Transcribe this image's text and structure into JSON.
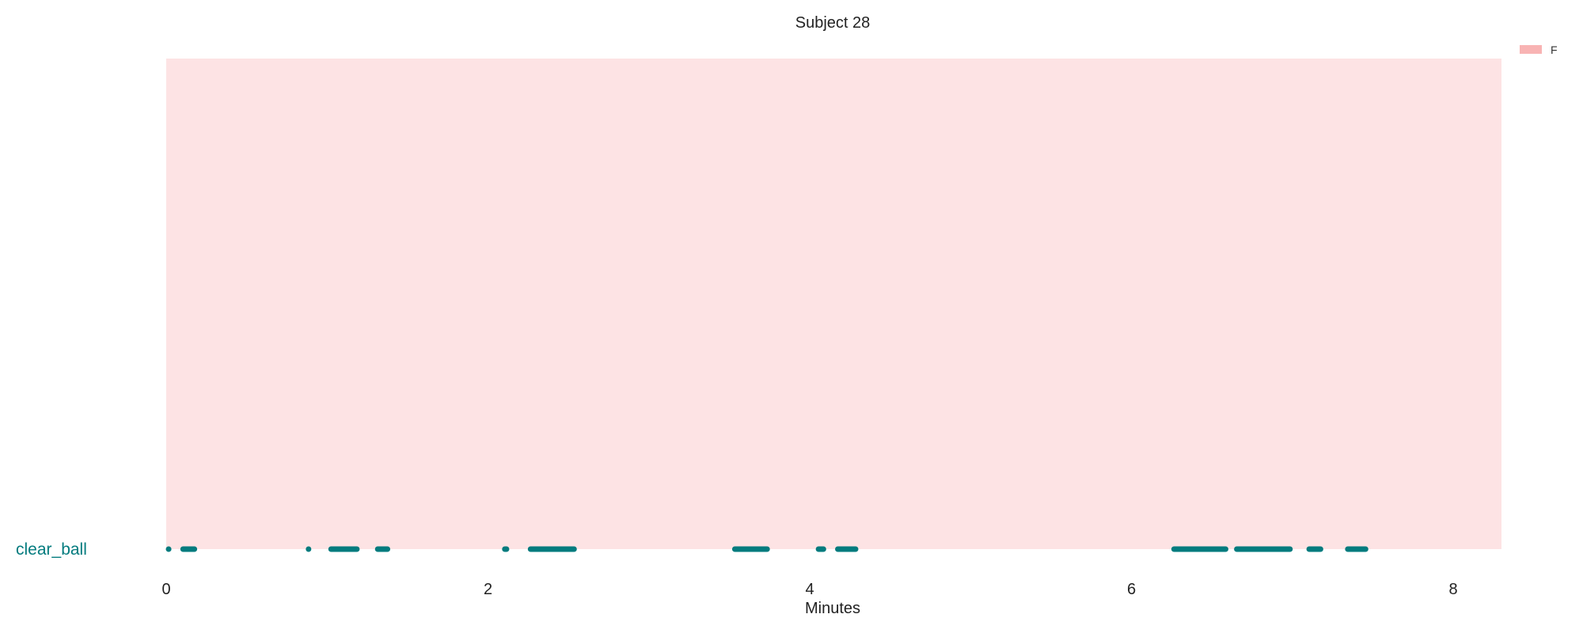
{
  "chart_data": {
    "type": "timeline",
    "title": "Subject 28",
    "xlabel": "Minutes",
    "xlim": [
      0,
      8.3
    ],
    "x_ticks": [
      0,
      2,
      4,
      6,
      8
    ],
    "x_tick_labels": [
      "0",
      "2",
      "4",
      "6",
      "8"
    ],
    "grid": false,
    "legend": {
      "placement": "top-right",
      "entries": [
        {
          "label": "F",
          "color": "#f8b3b3"
        }
      ]
    },
    "background_spans": [
      {
        "label": "F",
        "start": 0,
        "end": 8.3,
        "color": "#fde3e4"
      }
    ],
    "rows": [
      {
        "label": "clear_ball",
        "color": "#027b7e",
        "segments": [
          [
            0.0,
            0.03
          ],
          [
            0.09,
            0.19
          ],
          [
            0.87,
            0.89
          ],
          [
            1.01,
            1.2
          ],
          [
            1.3,
            1.39
          ],
          [
            2.09,
            2.13
          ],
          [
            2.25,
            2.55
          ],
          [
            3.52,
            3.75
          ],
          [
            4.04,
            4.1
          ],
          [
            4.16,
            4.3
          ],
          [
            6.25,
            6.6
          ],
          [
            6.64,
            7.0
          ],
          [
            7.09,
            7.19
          ],
          [
            7.33,
            7.47
          ]
        ]
      }
    ]
  }
}
